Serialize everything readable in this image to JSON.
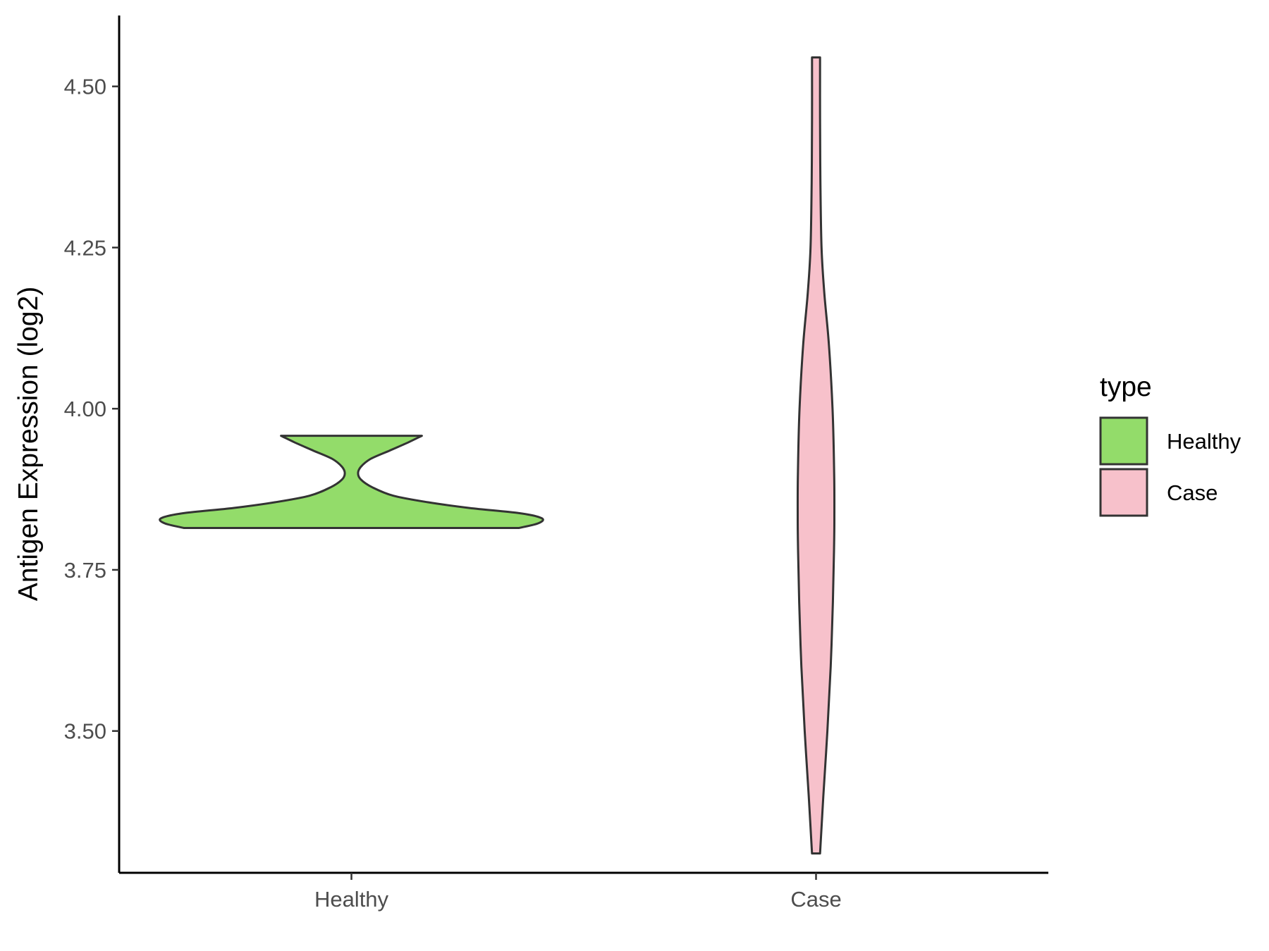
{
  "chart_data": {
    "type": "violin",
    "title": "",
    "xlabel": "",
    "ylabel": "Antigen Expression (log2)",
    "ylim": [
      3.28,
      4.61
    ],
    "yticks": [
      "3.50",
      "3.75",
      "4.00",
      "4.25",
      "4.50"
    ],
    "categories": [
      "Healthy",
      "Case"
    ],
    "grid": false,
    "legend": {
      "title": "type",
      "placement": "right",
      "entries": [
        "Healthy",
        "Case"
      ]
    },
    "series": [
      {
        "name": "Healthy",
        "color": "#93DC6A",
        "min": 3.815,
        "max": 3.958,
        "density": [
          [
            3.815,
            0.88
          ],
          [
            3.822,
            0.98
          ],
          [
            3.83,
            1.0
          ],
          [
            3.838,
            0.88
          ],
          [
            3.846,
            0.62
          ],
          [
            3.855,
            0.4
          ],
          [
            3.865,
            0.22
          ],
          [
            3.878,
            0.11
          ],
          [
            3.89,
            0.05
          ],
          [
            3.9,
            0.035
          ],
          [
            3.91,
            0.05
          ],
          [
            3.922,
            0.1
          ],
          [
            3.935,
            0.2
          ],
          [
            3.948,
            0.3
          ],
          [
            3.958,
            0.37
          ]
        ]
      },
      {
        "name": "Case",
        "color": "#F7C1CB",
        "min": 3.31,
        "max": 4.545,
        "density": [
          [
            3.31,
            0.22
          ],
          [
            3.4,
            0.4
          ],
          [
            3.5,
            0.62
          ],
          [
            3.6,
            0.8
          ],
          [
            3.7,
            0.92
          ],
          [
            3.78,
            0.98
          ],
          [
            3.83,
            1.0
          ],
          [
            3.9,
            0.99
          ],
          [
            4.0,
            0.9
          ],
          [
            4.1,
            0.7
          ],
          [
            4.18,
            0.45
          ],
          [
            4.25,
            0.3
          ],
          [
            4.35,
            0.24
          ],
          [
            4.45,
            0.22
          ],
          [
            4.545,
            0.22
          ]
        ]
      }
    ],
    "outline_color": "#333333"
  }
}
